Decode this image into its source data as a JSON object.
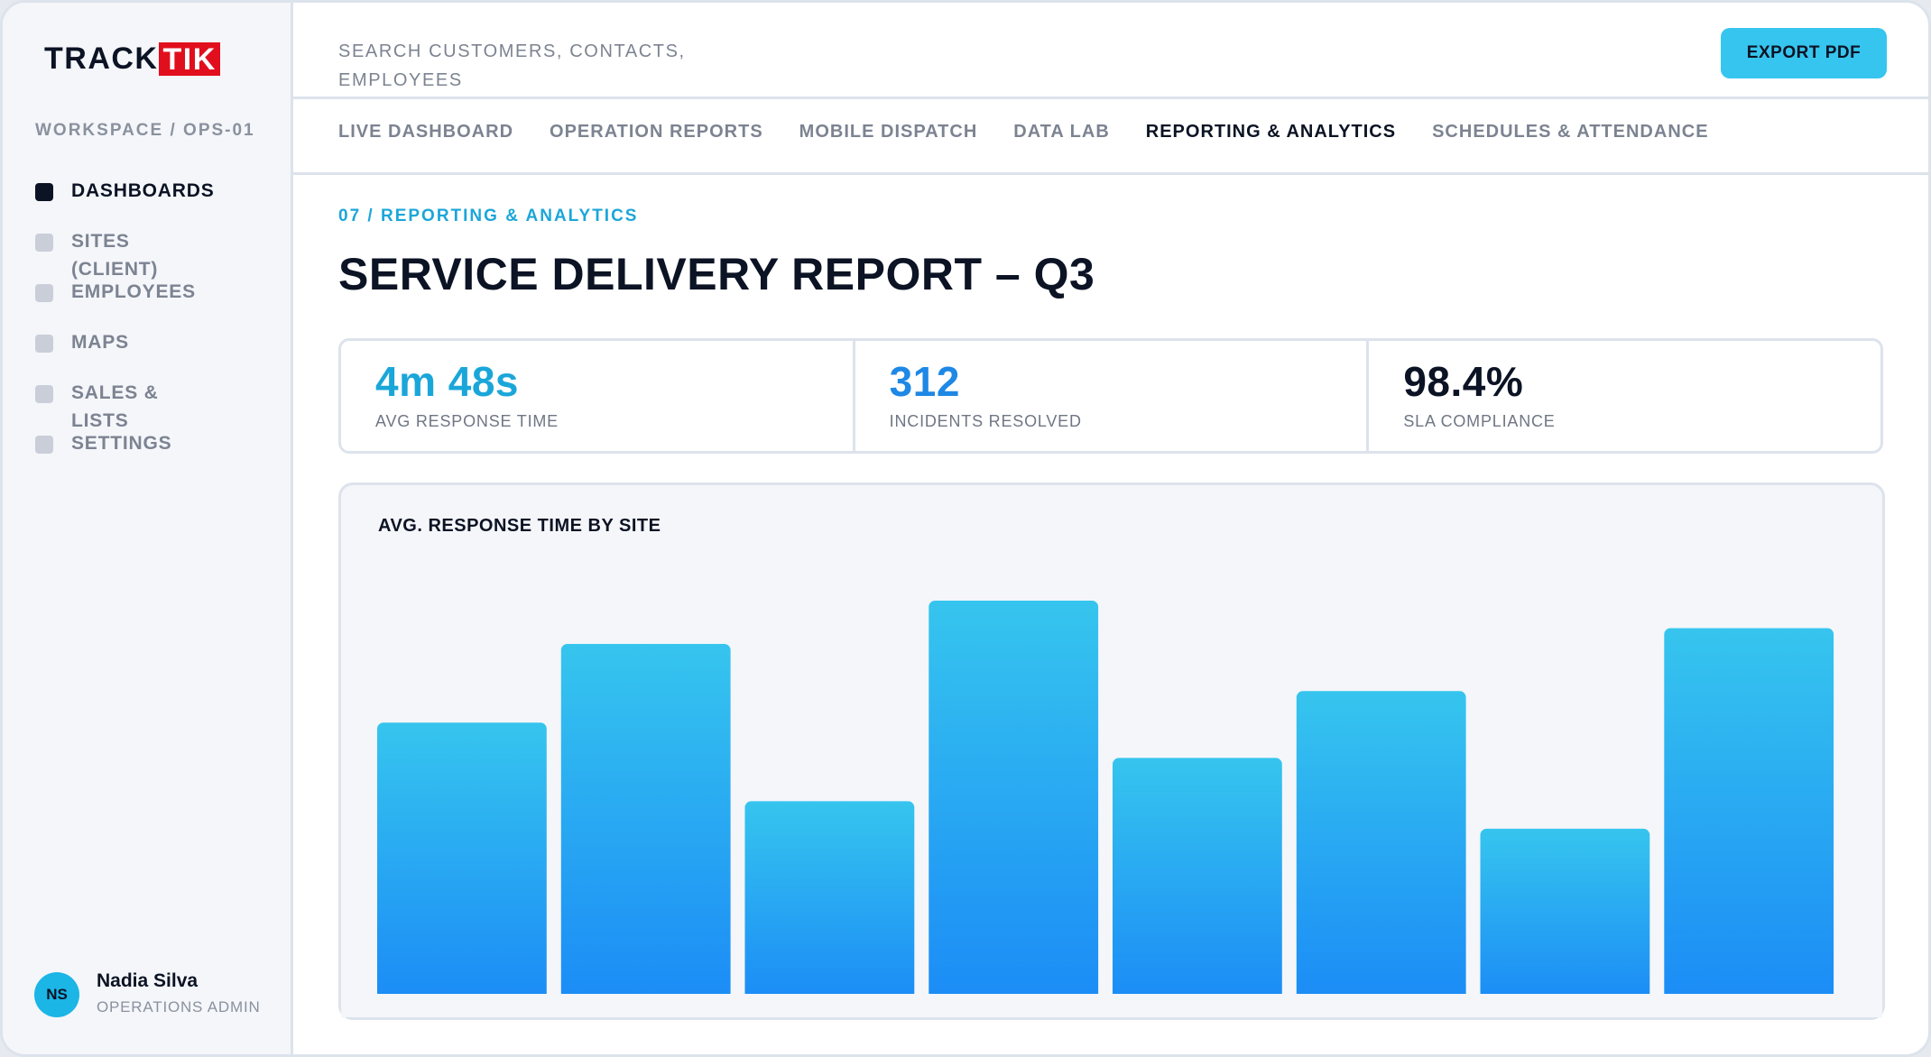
{
  "brand": {
    "logo_left": "TRACK",
    "logo_right": "TIK"
  },
  "sidebar": {
    "workspace": "WORKSPACE / OPS-01",
    "items": [
      {
        "label": "DASHBOARDS",
        "active": true
      },
      {
        "label": "SITES",
        "active": false
      },
      {
        "label": "(CLIENT)",
        "active": false
      },
      {
        "label": "EMPLOYEES",
        "active": false
      },
      {
        "label": "MAPS",
        "active": false
      },
      {
        "label": "SALES &",
        "active": false
      },
      {
        "label": "LISTS",
        "active": false
      },
      {
        "label": "SETTINGS",
        "active": false
      }
    ]
  },
  "user": {
    "initials": "NS",
    "name": "Nadia Silva",
    "role": "OPERATIONS ADMIN"
  },
  "header": {
    "search_text": "SEARCH CUSTOMERS, CONTACTS, EMPLOYEES",
    "export_label": "EXPORT PDF"
  },
  "tabs": [
    {
      "label": "LIVE DASHBOARD",
      "active": false
    },
    {
      "label": "OPERATION REPORTS",
      "active": false
    },
    {
      "label": "MOBILE DISPATCH",
      "active": false
    },
    {
      "label": "DATA LAB",
      "active": false
    },
    {
      "label": "REPORTING & ANALYTICS",
      "active": true
    },
    {
      "label": "SCHEDULES & ATTENDANCE",
      "active": false
    }
  ],
  "main": {
    "eyebrow": "07 / REPORTING & ANALYTICS",
    "title": "SERVICE DELIVERY REPORT – Q3",
    "kpis": [
      {
        "value": "4m 48s",
        "label": "AVG RESPONSE TIME",
        "color": "#1ba6d9"
      },
      {
        "value": "312",
        "label": "INCIDENTS RESOLVED",
        "color": "#1e88e5"
      },
      {
        "value": "98.4%",
        "label": "SLA COMPLIANCE",
        "color": "#0b1324"
      }
    ]
  },
  "colors": {
    "accent": "#36c5ee",
    "bar_top": "#36c5ee",
    "bar_bottom": "#1b8cf6",
    "brand_red": "#e10f1d"
  },
  "chart_data": {
    "type": "bar",
    "title": "AVG. RESPONSE TIME BY SITE",
    "categories": [
      "",
      "",
      "",
      "",
      "",
      "",
      "",
      ""
    ],
    "values": [
      69,
      89,
      49,
      100,
      60,
      77,
      42,
      93
    ],
    "ylim": [
      0,
      100
    ],
    "grid": false,
    "xlabel": "",
    "ylabel": ""
  }
}
